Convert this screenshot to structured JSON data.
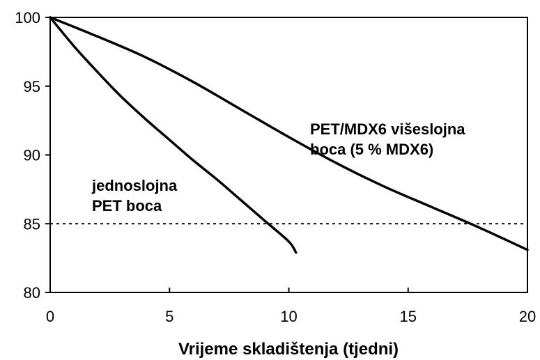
{
  "chart_data": {
    "type": "line",
    "title": "",
    "xlabel": "Vrijeme skladištenja (tjedni)",
    "ylabel": "",
    "xlim": [
      0,
      20
    ],
    "ylim": [
      80,
      100
    ],
    "x_ticks": [
      "0",
      "5",
      "10",
      "15",
      "20"
    ],
    "y_ticks": [
      "80",
      "85",
      "90",
      "95",
      "100"
    ],
    "grid": false,
    "legend": "none",
    "series": [
      {
        "label": [
          "jednoslojna",
          "PET boca"
        ],
        "color": "#000000",
        "x": [
          0,
          1,
          2,
          3,
          4,
          5,
          6,
          7,
          8,
          9,
          10,
          10.3
        ],
        "y": [
          100,
          97.9,
          96.0,
          94.2,
          92.6,
          91.1,
          89.6,
          88.2,
          86.7,
          85.2,
          83.7,
          82.9
        ]
      },
      {
        "label": [
          "PET/MDX6 višeslojna",
          "boca (5 % MDX6)"
        ],
        "color": "#000000",
        "x": [
          0,
          2,
          4,
          6,
          8,
          10,
          12,
          14,
          16,
          18,
          20
        ],
        "y": [
          100,
          98.6,
          97.1,
          95.3,
          93.3,
          91.3,
          89.4,
          87.7,
          86.2,
          84.7,
          83.1
        ]
      }
    ],
    "reference_line": {
      "y": 85,
      "style": "dotted",
      "color": "#000000"
    }
  }
}
